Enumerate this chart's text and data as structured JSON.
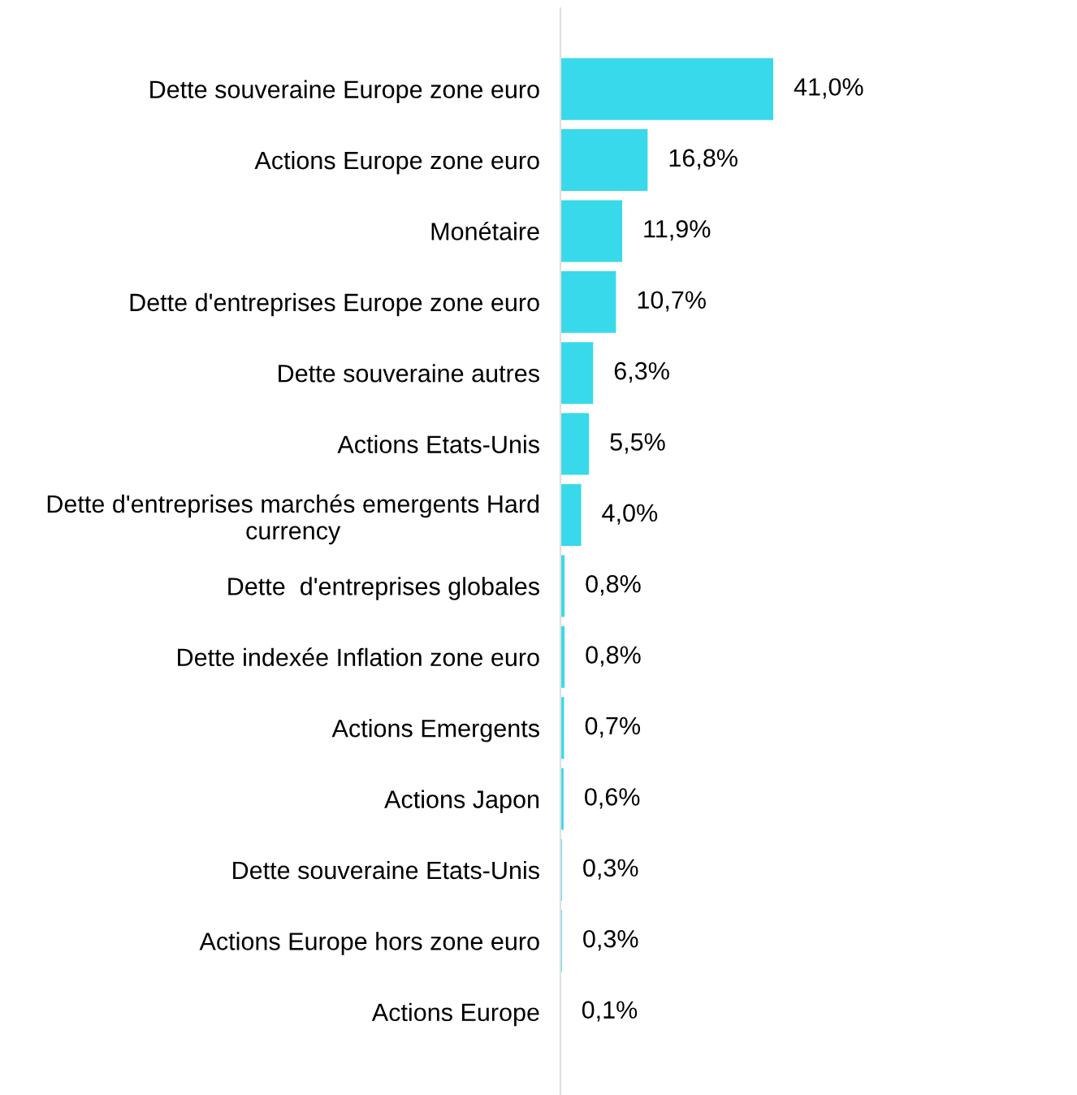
{
  "chart_data": {
    "type": "bar",
    "orientation": "horizontal",
    "categories": [
      "Dette souveraine Europe zone euro",
      "Actions Europe zone euro",
      "Monétaire",
      "Dette d'entreprises Europe zone euro",
      "Dette souveraine autres",
      "Actions Etats-Unis",
      "Dette d'entreprises marchés emergents Hard\ncurrency",
      "Dette  d'entreprises globales",
      "Dette indexée Inflation zone euro",
      "Actions Emergents",
      "Actions Japon",
      "Dette souveraine Etats-Unis",
      "Actions Europe hors zone euro",
      "Actions Europe"
    ],
    "values": [
      41.0,
      16.8,
      11.9,
      10.7,
      6.3,
      5.5,
      4.0,
      0.8,
      0.8,
      0.7,
      0.6,
      0.3,
      0.3,
      0.1
    ],
    "value_labels": [
      "41,0%",
      "16,8%",
      "11,9%",
      "10,7%",
      "6,3%",
      "5,5%",
      "4,0%",
      "0,8%",
      "0,8%",
      "0,7%",
      "0,6%",
      "0,3%",
      "0,3%",
      "0,1%"
    ],
    "color": "#38d9ea",
    "grid": false,
    "legend": false
  }
}
